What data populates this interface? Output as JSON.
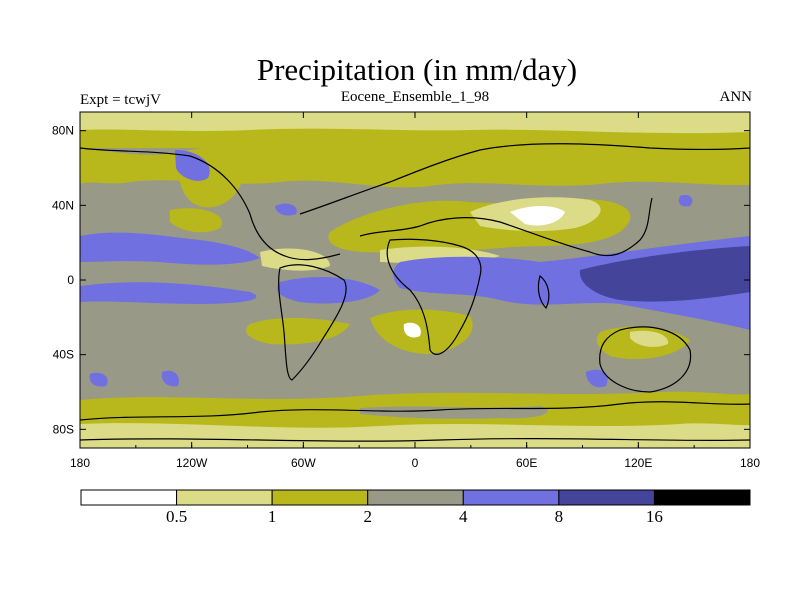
{
  "title": "Precipitation (in mm/day)",
  "subtitle": "Eocene_Ensemble_1_98",
  "left_label": "Expt = tcwjV",
  "right_label": "ANN",
  "axes": {
    "x_ticks": [
      "180",
      "120W",
      "60W",
      "0",
      "60E",
      "120E",
      "180"
    ],
    "y_ticks": [
      "80N",
      "40N",
      "0",
      "40S",
      "80S"
    ]
  },
  "colorbar": {
    "colors": [
      "#ffffff",
      "#dcdc88",
      "#b8b81c",
      "#999988",
      "#7070e0",
      "#44449a",
      "#000000"
    ],
    "labels": [
      "0.5",
      "1",
      "2",
      "4",
      "8",
      "16"
    ]
  }
}
